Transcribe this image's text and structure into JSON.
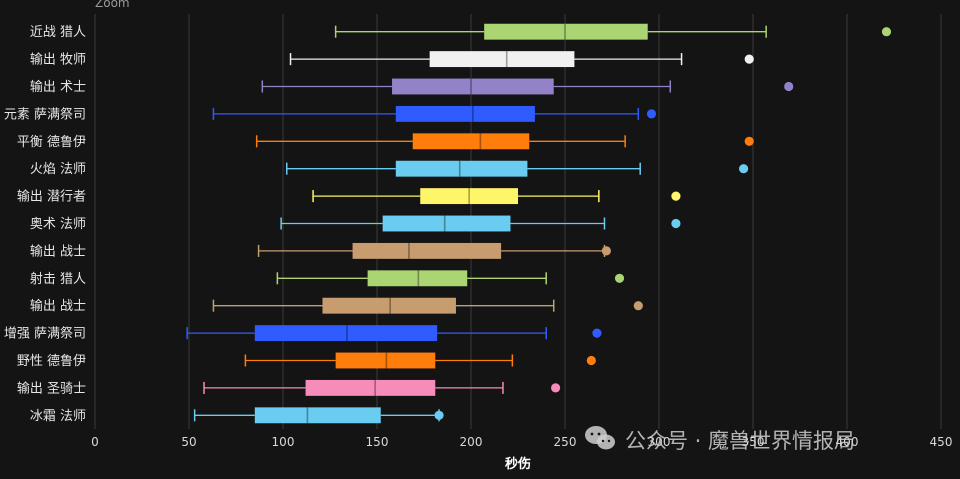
{
  "chart_data": {
    "type": "boxplot",
    "zoom_label": "Zoom",
    "xlabel": "秒伤",
    "xlim": [
      0,
      450
    ],
    "xticks": [
      0,
      50,
      100,
      150,
      200,
      250,
      300,
      350,
      400,
      450
    ],
    "grid": true,
    "watermark": "公众号 · 魔兽世界情报局",
    "series": [
      {
        "name": "近战 猎人",
        "color": "#abd473",
        "min": 128,
        "q1": 207,
        "median": 250,
        "q3": 294,
        "max": 357,
        "outliers": [
          421
        ]
      },
      {
        "name": "输出 牧师",
        "color": "#f0f0f0",
        "min": 104,
        "q1": 178,
        "median": 219,
        "q3": 255,
        "max": 312,
        "outliers": [
          348
        ]
      },
      {
        "name": "输出 术士",
        "color": "#9482c9",
        "min": 89,
        "q1": 158,
        "median": 200,
        "q3": 244,
        "max": 306,
        "outliers": [
          369
        ]
      },
      {
        "name": "元素 萨满祭司",
        "color": "#2f5bff",
        "min": 63,
        "q1": 160,
        "median": 201,
        "q3": 234,
        "max": 289,
        "outliers": [
          296
        ]
      },
      {
        "name": "平衡 德鲁伊",
        "color": "#ff7d0a",
        "min": 86,
        "q1": 169,
        "median": 205,
        "q3": 231,
        "max": 282,
        "outliers": [
          348
        ]
      },
      {
        "name": "火焰 法师",
        "color": "#69ccf0",
        "min": 102,
        "q1": 160,
        "median": 194,
        "q3": 230,
        "max": 290,
        "outliers": [
          345
        ]
      },
      {
        "name": "输出 潜行者",
        "color": "#fff569",
        "min": 116,
        "q1": 173,
        "median": 199,
        "q3": 225,
        "max": 268,
        "outliers": [
          309
        ]
      },
      {
        "name": "奥术 法师",
        "color": "#69ccf0",
        "min": 99,
        "q1": 153,
        "median": 186,
        "q3": 221,
        "max": 271,
        "outliers": [
          309
        ]
      },
      {
        "name": "输出 战士",
        "color": "#c79c6e",
        "min": 87,
        "q1": 137,
        "median": 167,
        "q3": 216,
        "max": 271,
        "outliers": [
          272
        ]
      },
      {
        "name": "射击 猎人",
        "color": "#abd473",
        "min": 97,
        "q1": 145,
        "median": 172,
        "q3": 198,
        "max": 240,
        "outliers": [
          279
        ]
      },
      {
        "name": "输出 战士",
        "color": "#c79c6e",
        "min": 63,
        "q1": 121,
        "median": 157,
        "q3": 192,
        "max": 244,
        "outliers": [
          289
        ]
      },
      {
        "name": "增强 萨满祭司",
        "color": "#2f5bff",
        "min": 49,
        "q1": 85,
        "median": 134,
        "q3": 182,
        "max": 240,
        "outliers": [
          267
        ]
      },
      {
        "name": "野性 德鲁伊",
        "color": "#ff7d0a",
        "min": 80,
        "q1": 128,
        "median": 155,
        "q3": 181,
        "max": 222,
        "outliers": [
          264
        ]
      },
      {
        "name": "输出 圣骑士",
        "color": "#f58cba",
        "min": 58,
        "q1": 112,
        "median": 149,
        "q3": 181,
        "max": 217,
        "outliers": [
          245
        ]
      },
      {
        "name": "冰霜 法师",
        "color": "#69ccf0",
        "min": 53,
        "q1": 85,
        "median": 113,
        "q3": 152,
        "max": 183,
        "outliers": [
          183
        ]
      }
    ]
  }
}
